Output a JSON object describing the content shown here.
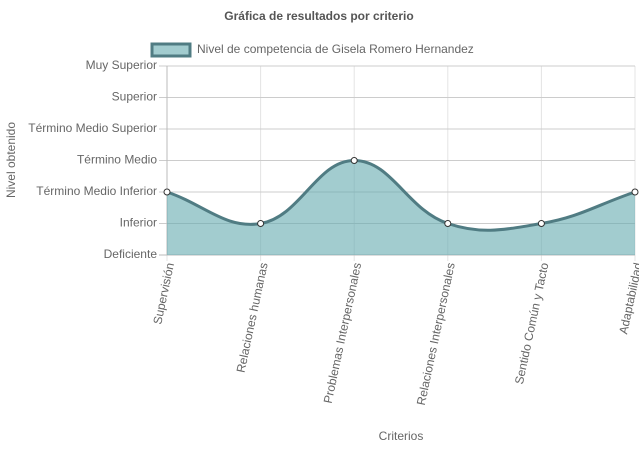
{
  "chart_data": {
    "type": "area",
    "title": "Gráfica de resultados por criterio",
    "x_label": "Criterios",
    "y_label": "Nivel obtenido",
    "categories": [
      "Supervisión",
      "Relaciones humanas",
      "Problemas Interpersonales",
      "Relaciones Interpersonales",
      "Sentido Común y Tacto",
      "Adaptabilidad"
    ],
    "series": [
      {
        "name": "Nivel de competencia de Gisela Romero Hernandez",
        "color": "#507c83",
        "fill": "rgba(100,170,175,0.6)",
        "values": [
          2,
          1,
          3,
          1,
          1,
          2
        ]
      }
    ],
    "ylim": [
      0,
      6
    ],
    "yticks": [
      {
        "value": 0,
        "label": "Deficiente"
      },
      {
        "value": 1,
        "label": "Inferior"
      },
      {
        "value": 2,
        "label": "Término Medio Inferior"
      },
      {
        "value": 3,
        "label": "Término Medio"
      },
      {
        "value": 4,
        "label": "Término Medio Superior"
      },
      {
        "value": 5,
        "label": "Superior"
      },
      {
        "value": 6,
        "label": "Muy Superior"
      }
    ],
    "grid": true,
    "legend": "top"
  }
}
